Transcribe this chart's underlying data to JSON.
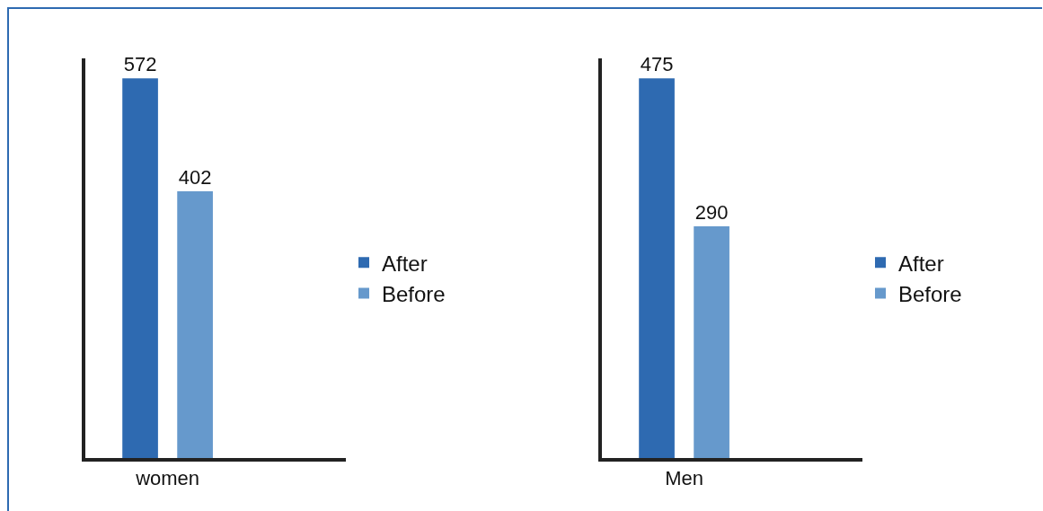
{
  "chart_data": [
    {
      "type": "bar",
      "categories": [
        "women"
      ],
      "series": [
        {
          "name": "After",
          "color": "#2e6ab1",
          "values": [
            572
          ]
        },
        {
          "name": "Before",
          "color": "#6699cc",
          "values": [
            402
          ]
        }
      ],
      "data_labels": true,
      "legend": "right",
      "grid": false
    },
    {
      "type": "bar",
      "categories": [
        "Men"
      ],
      "series": [
        {
          "name": "After",
          "color": "#2e6ab1",
          "values": [
            475
          ]
        },
        {
          "name": "Before",
          "color": "#6699cc",
          "values": [
            290
          ]
        }
      ],
      "data_labels": true,
      "legend": "right",
      "grid": false
    }
  ]
}
